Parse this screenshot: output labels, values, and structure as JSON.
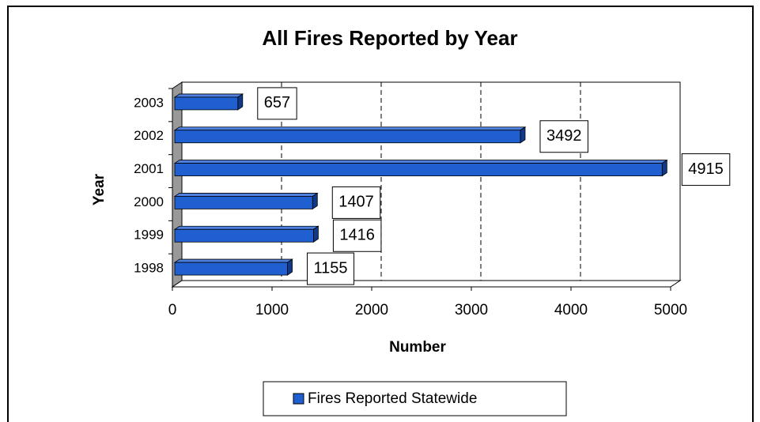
{
  "chart_data": {
    "type": "bar",
    "orientation": "horizontal",
    "title": "All Fires Reported by Year",
    "y_label": "Year",
    "x_label": "Number",
    "categories": [
      "1998",
      "1999",
      "2000",
      "2001",
      "2002",
      "2003"
    ],
    "series": [
      {
        "name": "Fires Reported Statewide",
        "color": "#1f5fd0",
        "values": [
          1155,
          1416,
          1407,
          4915,
          3492,
          657
        ]
      }
    ],
    "xlim": [
      0,
      5000
    ],
    "xticks": [
      0,
      1000,
      2000,
      3000,
      4000,
      5000
    ],
    "grid": true,
    "legend": "bottom"
  }
}
